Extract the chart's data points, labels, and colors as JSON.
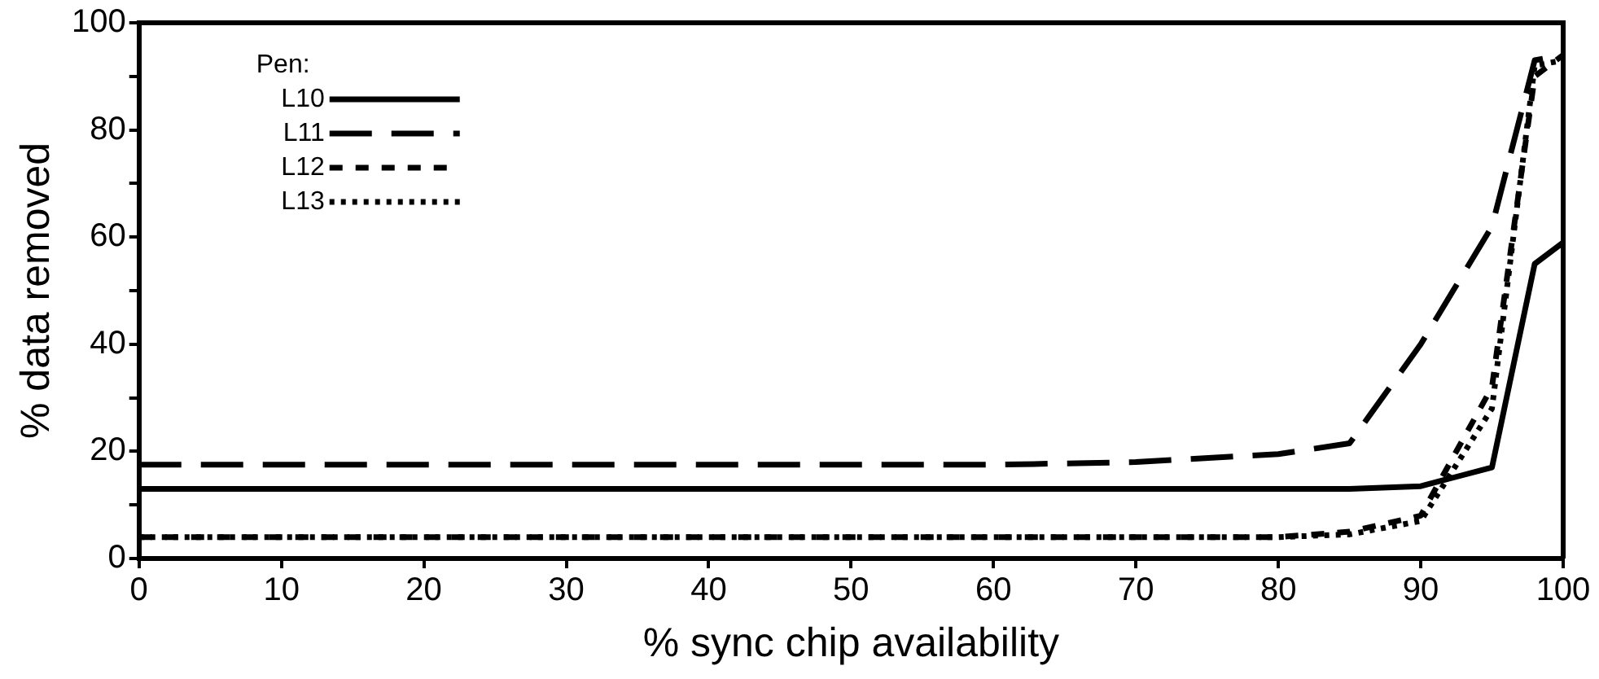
{
  "chart_data": {
    "type": "line",
    "xlabel": "% sync chip availability",
    "ylabel": "% data removed",
    "legend_title": "Pen:",
    "legend": "top left",
    "grid": false,
    "marker": "none",
    "x": [
      0,
      10,
      20,
      30,
      40,
      50,
      60,
      70,
      80,
      85,
      90,
      95,
      98,
      100
    ],
    "xlim": [
      0,
      100
    ],
    "xticks": [
      0,
      10,
      20,
      30,
      40,
      50,
      60,
      70,
      80,
      90,
      100
    ],
    "ylim": [
      0,
      100
    ],
    "yticks": [
      0,
      {
        "value": 10,
        "label": null
      },
      20,
      {
        "value": 30,
        "label": null
      },
      40,
      {
        "value": 50,
        "label": null
      },
      60,
      {
        "value": 70,
        "label": null
      },
      80,
      {
        "value": 90,
        "label": null
      },
      100
    ],
    "series": [
      {
        "name": "L10",
        "color": "#000000",
        "line_style": "solid",
        "values": [
          13,
          13,
          13,
          13,
          13,
          13,
          13,
          13,
          13,
          13,
          13.5,
          17,
          55,
          59
        ]
      },
      {
        "name": "L11",
        "color": "#000000",
        "line_style": "dashed",
        "values": [
          17.5,
          17.5,
          17.5,
          17.5,
          17.5,
          17.5,
          17.5,
          18,
          19.5,
          21.5,
          40,
          62,
          93,
          94
        ]
      },
      {
        "name": "L12",
        "color": "#000000",
        "line_style": "dashed",
        "values": [
          4,
          4,
          4,
          4,
          4,
          4,
          4,
          4,
          4,
          5,
          8,
          32,
          90,
          94
        ]
      },
      {
        "name": "L13",
        "color": "#000000",
        "line_style": "dotted",
        "values": [
          4,
          4,
          4,
          4,
          4,
          4,
          4,
          4,
          4,
          4.5,
          7,
          28,
          92,
          93
        ]
      }
    ]
  }
}
